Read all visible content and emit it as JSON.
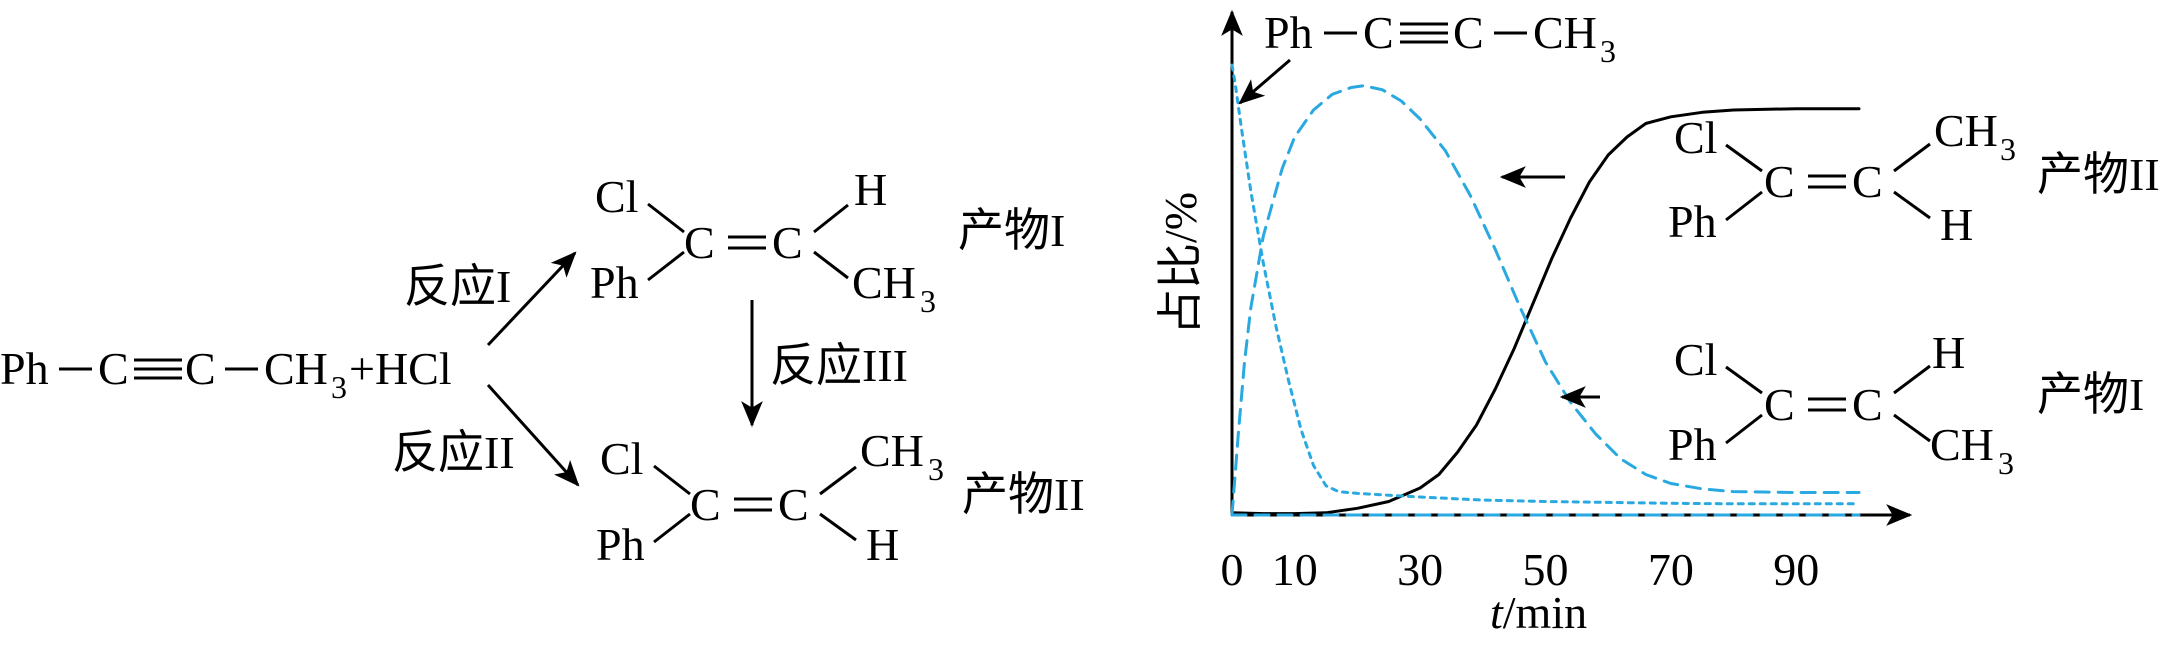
{
  "scheme": {
    "reactant": {
      "ph": "Ph",
      "c": "C",
      "ch": "CH",
      "three": "3",
      "plus_hcl": "+HCl"
    },
    "reaction_1": "反应I",
    "reaction_2": "反应II",
    "reaction_3": "反应III",
    "product_1": {
      "cl": "Cl",
      "ph": "Ph",
      "c": "C",
      "h": "H",
      "ch": "CH",
      "three": "3",
      "name": "产物I"
    },
    "product_2": {
      "cl": "Cl",
      "ph": "Ph",
      "c": "C",
      "h": "H",
      "ch": "CH",
      "three": "3",
      "name": "产物II"
    }
  },
  "chart_data": {
    "type": "line",
    "xlabel_italic": "t",
    "xlabel_rest": "/min",
    "ylabel": "占比/%",
    "x_ticks": [
      0,
      10,
      30,
      50,
      70,
      90
    ],
    "xlim": [
      0,
      105
    ],
    "ylim": [
      0,
      100
    ],
    "grid": false,
    "series": [
      {
        "style": "solid",
        "color": "#000000",
        "x": [
          0,
          5,
          10,
          15,
          20,
          25,
          30,
          33,
          36,
          39,
          42,
          45,
          48,
          51,
          54,
          57,
          60,
          63,
          66,
          70,
          75,
          80,
          90,
          100
        ],
        "y": [
          0.5,
          0.3,
          0.3,
          0.5,
          1.5,
          3,
          6,
          9,
          14,
          20,
          28,
          37,
          47,
          57,
          66,
          74,
          80,
          84,
          87,
          88.5,
          89.5,
          90,
          90.3,
          90.3
        ]
      },
      {
        "style": "dashed",
        "color": "#29a9e0",
        "x": [
          0,
          1,
          2,
          3,
          5,
          8,
          10,
          13,
          16,
          19,
          21,
          24,
          27,
          30,
          34,
          38,
          42,
          46,
          50,
          54,
          58,
          62,
          66,
          70,
          75,
          80,
          90,
          100
        ],
        "y": [
          0,
          18,
          34,
          46,
          62,
          77,
          84,
          90,
          93.5,
          95,
          95.4,
          94.5,
          92,
          88,
          81,
          71,
          59,
          46,
          34,
          25,
          18,
          12.5,
          9,
          7,
          5.8,
          5.2,
          5,
          5
        ]
      },
      {
        "style": "dotted",
        "color": "#29a9e0",
        "x": [
          0,
          0.5,
          1.5,
          3,
          5,
          7,
          9,
          11,
          13,
          15,
          17,
          20,
          30,
          40,
          50,
          60,
          70,
          80,
          90,
          100
        ],
        "y": [
          100,
          96,
          86,
          72,
          56,
          42,
          30,
          19,
          11,
          6.5,
          5.2,
          4.8,
          4,
          3.3,
          3,
          2.8,
          2.6,
          2.5,
          2.5,
          2.5
        ]
      },
      {
        "style": "dashed",
        "color": "#29a9e0",
        "x": [
          0,
          10,
          30,
          50,
          70,
          90,
          100
        ],
        "y": [
          0,
          0,
          0,
          0,
          0,
          0,
          0
        ]
      }
    ],
    "annotations": {
      "reactant": {
        "ph": "Ph",
        "c": "C",
        "ch": "CH",
        "three": "3"
      },
      "product_2": {
        "cl": "Cl",
        "ph": "Ph",
        "c": "C",
        "h": "H",
        "ch": "CH",
        "three": "3",
        "name": "产物II"
      },
      "product_1": {
        "cl": "Cl",
        "ph": "Ph",
        "c": "C",
        "h": "H",
        "ch": "CH",
        "three": "3",
        "name": "产物I"
      }
    }
  }
}
